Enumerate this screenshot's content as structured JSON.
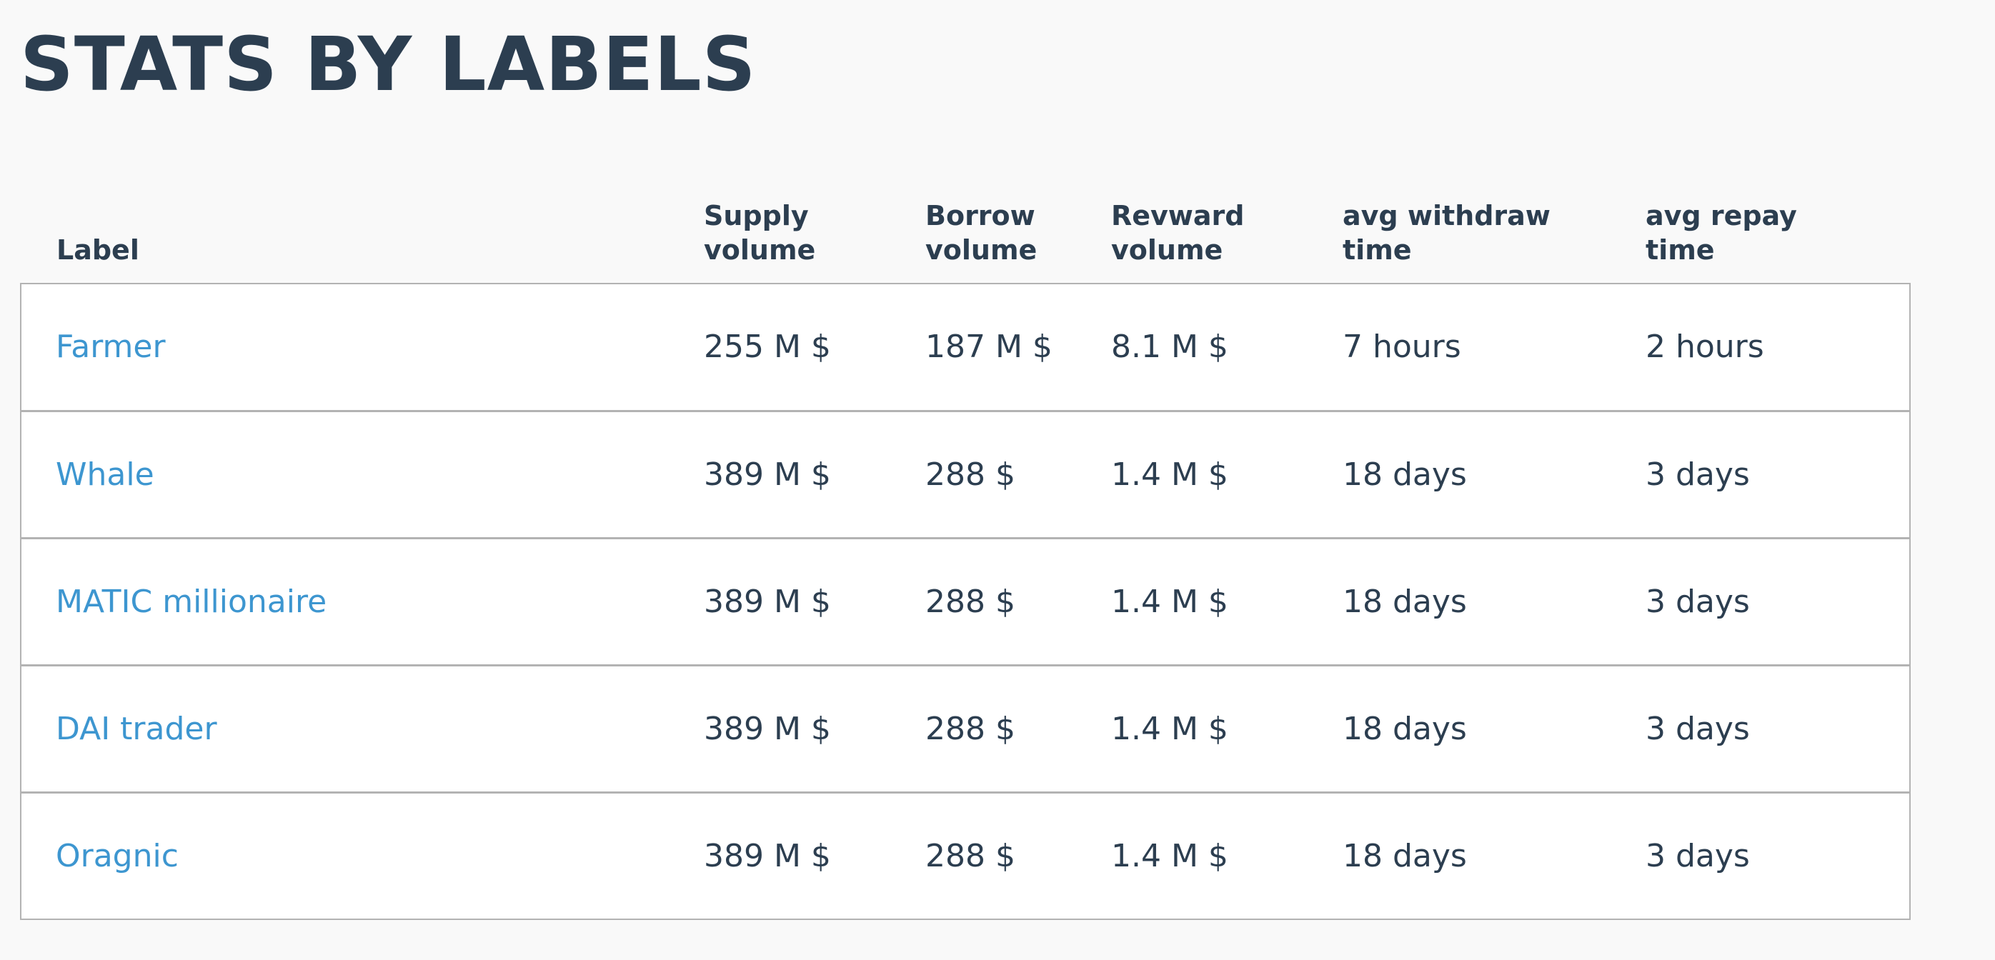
{
  "page": {
    "title": "STATS BY LABELS"
  },
  "table": {
    "columns": [
      [
        "Label"
      ],
      [
        "Supply",
        "volume"
      ],
      [
        "Borrow",
        "volume"
      ],
      [
        "Revward",
        "volume"
      ],
      [
        "avg withdraw",
        "time"
      ],
      [
        "avg repay",
        "time"
      ]
    ],
    "rows": [
      {
        "label": "Farmer",
        "supply": "255 M $",
        "borrow": "187 M $",
        "reward": "8.1 M $",
        "withdraw": "7 hours",
        "repay": "2 hours"
      },
      {
        "label": "Whale",
        "supply": "389 M $",
        "borrow": "288 $",
        "reward": "1.4 M $",
        "withdraw": "18 days",
        "repay": "3 days"
      },
      {
        "label": "MATIC millionaire",
        "supply": "389 M $",
        "borrow": "288 $",
        "reward": "1.4 M $",
        "withdraw": "18 days",
        "repay": "3 days"
      },
      {
        "label": "DAI trader",
        "supply": "389 M $",
        "borrow": "288 $",
        "reward": "1.4 M $",
        "withdraw": "18 days",
        "repay": "3 days"
      },
      {
        "label": "Oragnic",
        "supply": "389 M $",
        "borrow": "288 $",
        "reward": "1.4 M $",
        "withdraw": "18 days",
        "repay": "3 days"
      }
    ]
  },
  "colors": {
    "heading": "#2c3e50",
    "link": "#3d96d0",
    "border": "#b3b3b3",
    "background": "#f9f9f9"
  }
}
